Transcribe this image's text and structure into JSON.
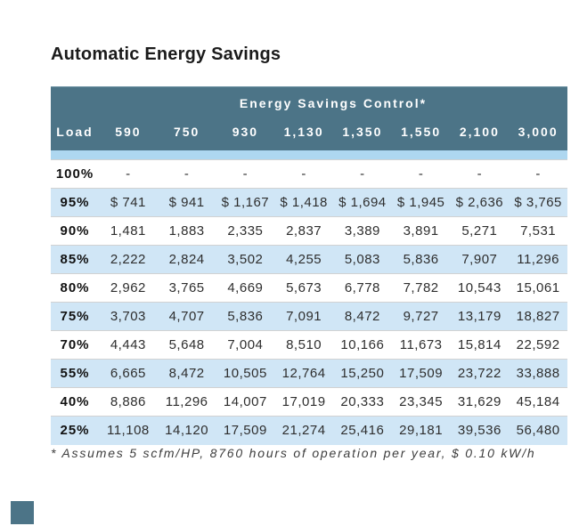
{
  "page": {
    "title": "Automatic Energy Savings",
    "footnote": "* Assumes 5 scfm/HP, 8760 hours of operation per year, $ 0.10 kW/h"
  },
  "colors": {
    "header_teal": "#4c7487",
    "strip_blue": "#aed7f0",
    "row_blue": "#d0e6f6",
    "row_white": "#ffffff",
    "row_border": "#d2d2d2",
    "text_dark": "#2e2e2e"
  },
  "table": {
    "banner": "Energy Savings Control*",
    "load_header": "Load",
    "columns": [
      "590",
      "750",
      "930",
      "1,130",
      "1,350",
      "1,550",
      "2,100",
      "3,000"
    ],
    "rows": [
      {
        "load": "100%",
        "values": [
          "-",
          "-",
          "-",
          "-",
          "-",
          "-",
          "-",
          "-"
        ]
      },
      {
        "load": "95%",
        "values": [
          "$ 741",
          "$ 941",
          "$ 1,167",
          "$ 1,418",
          "$ 1,694",
          "$ 1,945",
          "$ 2,636",
          "$ 3,765"
        ]
      },
      {
        "load": "90%",
        "values": [
          "1,481",
          "1,883",
          "2,335",
          "2,837",
          "3,389",
          "3,891",
          "5,271",
          "7,531"
        ]
      },
      {
        "load": "85%",
        "values": [
          "2,222",
          "2,824",
          "3,502",
          "4,255",
          "5,083",
          "5,836",
          "7,907",
          "11,296"
        ]
      },
      {
        "load": "80%",
        "values": [
          "2,962",
          "3,765",
          "4,669",
          "5,673",
          "6,778",
          "7,782",
          "10,543",
          "15,061"
        ]
      },
      {
        "load": "75%",
        "values": [
          "3,703",
          "4,707",
          "5,836",
          "7,091",
          "8,472",
          "9,727",
          "13,179",
          "18,827"
        ]
      },
      {
        "load": "70%",
        "values": [
          "4,443",
          "5,648",
          "7,004",
          "8,510",
          "10,166",
          "11,673",
          "15,814",
          "22,592"
        ]
      },
      {
        "load": "55%",
        "values": [
          "6,665",
          "8,472",
          "10,505",
          "12,764",
          "15,250",
          "17,509",
          "23,722",
          "33,888"
        ]
      },
      {
        "load": "40%",
        "values": [
          "8,886",
          "11,296",
          "14,007",
          "17,019",
          "20,333",
          "23,345",
          "31,629",
          "45,184"
        ]
      },
      {
        "load": "25%",
        "values": [
          "11,108",
          "14,120",
          "17,509",
          "21,274",
          "25,416",
          "29,181",
          "39,536",
          "56,480"
        ]
      }
    ]
  },
  "chart_data": {
    "type": "table",
    "title": "Automatic Energy Savings",
    "banner": "Energy Savings Control*",
    "column_label": "Load",
    "columns": [
      590,
      750,
      930,
      1130,
      1350,
      1550,
      2100,
      3000
    ],
    "load_percentages": [
      100,
      95,
      90,
      85,
      80,
      75,
      70,
      55,
      40,
      25
    ],
    "values_usd": [
      [
        null,
        null,
        null,
        null,
        null,
        null,
        null,
        null
      ],
      [
        741,
        941,
        1167,
        1418,
        1694,
        1945,
        2636,
        3765
      ],
      [
        1481,
        1883,
        2335,
        2837,
        3389,
        3891,
        5271,
        7531
      ],
      [
        2222,
        2824,
        3502,
        4255,
        5083,
        5836,
        7907,
        11296
      ],
      [
        2962,
        3765,
        4669,
        5673,
        6778,
        7782,
        10543,
        15061
      ],
      [
        3703,
        4707,
        5836,
        7091,
        8472,
        9727,
        13179,
        18827
      ],
      [
        4443,
        5648,
        7004,
        8510,
        10166,
        11673,
        15814,
        22592
      ],
      [
        6665,
        8472,
        10505,
        12764,
        15250,
        17509,
        23722,
        33888
      ],
      [
        8886,
        11296,
        14007,
        17019,
        20333,
        23345,
        31629,
        45184
      ],
      [
        11108,
        14120,
        17509,
        21274,
        25416,
        29181,
        39536,
        56480
      ]
    ],
    "footnote": "* Assumes 5 scfm/HP, 8760 hours of operation per year, $ 0.10 kW/h"
  }
}
